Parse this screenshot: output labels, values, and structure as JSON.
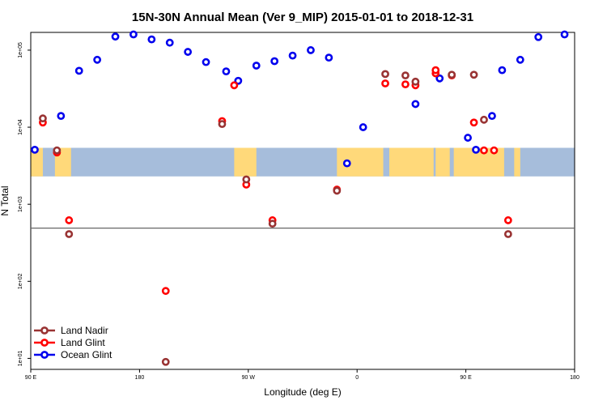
{
  "chart_data": {
    "type": "scatter",
    "title": "15N-30N Annual Mean (Ver 9_MIP)   2015-01-01 to 2018-12-31",
    "xlabel": "Longitude (deg E)",
    "ylabel": "N Total",
    "yscale": "log",
    "xlim": [
      -90,
      180
    ],
    "ylim": [
      7.2,
      170000
    ],
    "x_ticks": [
      {
        "value": -90,
        "label": "90 E"
      },
      {
        "value": -36,
        "label": "180"
      },
      {
        "value": 18,
        "label": "90 W"
      },
      {
        "value": 72,
        "label": "0"
      },
      {
        "value": 126,
        "label": "90 E"
      },
      {
        "value": 180,
        "label": "180"
      }
    ],
    "y_ticks": [
      {
        "value": 10,
        "label": "1e+01"
      },
      {
        "value": 100,
        "label": "1e+02"
      },
      {
        "value": 1000,
        "label": "1e+03"
      },
      {
        "value": 10000,
        "label": "1e+04"
      },
      {
        "value": 100000,
        "label": "1e+05"
      }
    ],
    "reference_line": 490,
    "map_band": {
      "y_range": [
        2300,
        5400
      ],
      "lon_start": -90,
      "lon_end": 180
    },
    "series": [
      {
        "name": "Land Nadir",
        "color": "#993333",
        "x": [
          -84,
          -77,
          -71,
          -23,
          5,
          17,
          30,
          62,
          86,
          96,
          101,
          119,
          130,
          135,
          147
        ],
        "y": [
          13000,
          5000,
          410,
          9,
          11000,
          2100,
          560,
          1500,
          49000,
          47000,
          39000,
          48000,
          48000,
          12500,
          410
        ]
      },
      {
        "name": "Land Glint",
        "color": "#ff0000",
        "x": [
          -84,
          -77,
          -71,
          -23,
          5,
          11,
          17,
          30,
          62,
          86,
          96,
          101,
          111,
          111,
          119,
          130,
          135,
          140,
          147
        ],
        "y": [
          11500,
          4700,
          620,
          75,
          12000,
          35000,
          1800,
          620,
          1550,
          37000,
          36000,
          35000,
          50000,
          55000,
          47000,
          11500,
          5000,
          5000,
          620
        ]
      },
      {
        "name": "Ocean Glint",
        "color": "#0000ee",
        "x": [
          -88,
          -75,
          -66,
          -57,
          -48,
          -39,
          -30,
          -21,
          -12,
          -3,
          7,
          13,
          22,
          31,
          40,
          49,
          58,
          67,
          75,
          101,
          113,
          127,
          131,
          139,
          144,
          153,
          162,
          175
        ],
        "y": [
          5100,
          14000,
          54000,
          75000,
          150000,
          160000,
          138000,
          125000,
          95000,
          70000,
          53000,
          40000,
          63000,
          72000,
          85000,
          100000,
          80000,
          3400,
          10000,
          20000,
          43000,
          7300,
          5100,
          14000,
          55000,
          75000,
          148000,
          160000
        ]
      }
    ],
    "legend": {
      "position": "bottom-left",
      "items": [
        "Land Nadir",
        "Land Glint",
        "Ocean Glint"
      ]
    }
  }
}
